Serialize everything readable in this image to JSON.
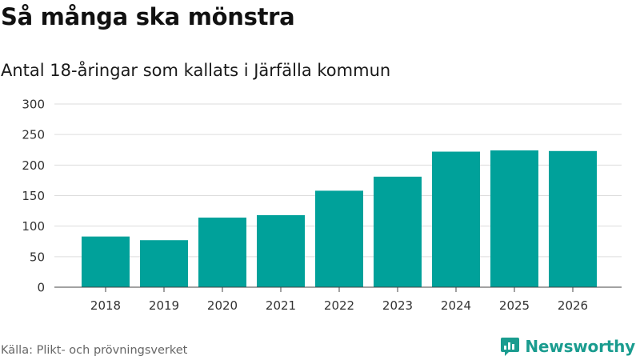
{
  "title": "Så många ska mönstra",
  "subtitle": "Antal 18-åringar som kallats i Järfälla kommun",
  "source": "Källa: Plikt- och prövningsverket",
  "brand": {
    "name": "Newsworthy",
    "icon": "newsworthy-logo-icon"
  },
  "colors": {
    "bar": "#00a19a",
    "grid": "#dddddd",
    "axis": "#444444",
    "brand": "#1a9c8f"
  },
  "chart_data": {
    "type": "bar",
    "title": "Så många ska mönstra",
    "subtitle": "Antal 18-åringar som kallats i Järfälla kommun",
    "xlabel": "",
    "ylabel": "",
    "categories": [
      "2018",
      "2019",
      "2020",
      "2021",
      "2022",
      "2023",
      "2024",
      "2025",
      "2026"
    ],
    "values": [
      83,
      77,
      114,
      118,
      158,
      181,
      222,
      224,
      223
    ],
    "ylim": [
      0,
      300
    ],
    "yticks": [
      0,
      50,
      100,
      150,
      200,
      250,
      300
    ],
    "grid": true
  }
}
